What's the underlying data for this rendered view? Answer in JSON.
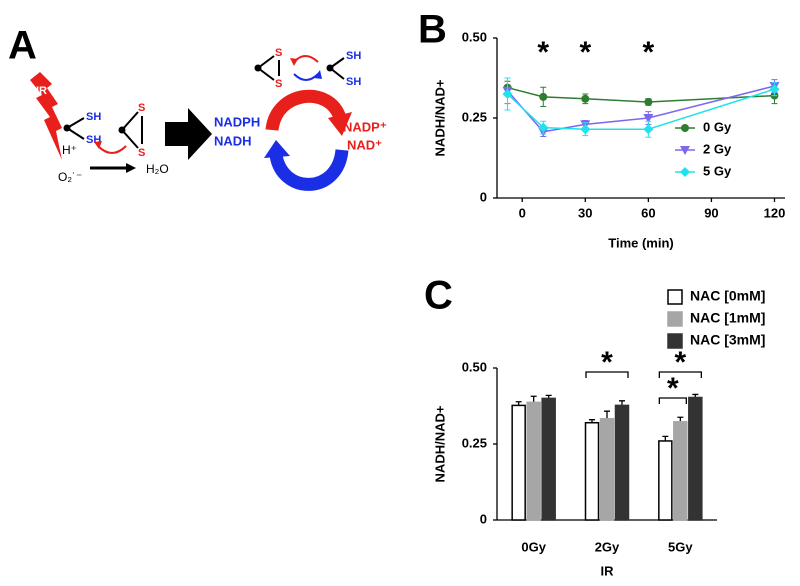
{
  "panel_labels": [
    "A",
    "B",
    "C"
  ],
  "diagram": {
    "ir": "IR",
    "thiol_1": [
      "SH",
      "SH"
    ],
    "disulfide_1": [
      "S",
      "S"
    ],
    "h_plus": "H⁺",
    "superoxide": "O₂˙⁻",
    "water": "H₂O",
    "reduced": [
      "NADPH",
      "NADH"
    ],
    "oxidized": [
      "NADP⁺",
      "NAD⁺"
    ],
    "disulfide_2": [
      "S",
      "S"
    ],
    "thiol_2": [
      "SH",
      "SH"
    ]
  },
  "chart_data": [
    {
      "type": "line",
      "xlabel": "Time (min)",
      "ylabel": "NADH/NAD+",
      "x": [
        -7,
        10,
        30,
        60,
        120
      ],
      "xlim": [
        -12,
        125
      ],
      "xticks": [
        0,
        30,
        60,
        90,
        120
      ],
      "ylim": [
        0,
        0.5
      ],
      "yticks": [
        0,
        0.25,
        {
          "value": 0.5,
          "label": "0.50"
        }
      ],
      "legend": "lower right",
      "series": [
        {
          "name": "0 Gy",
          "color": "#2e7d32",
          "marker": "circle",
          "values": [
            0.345,
            0.316,
            0.31,
            0.3,
            0.32
          ],
          "errors": [
            0.02,
            0.03,
            0.015,
            0.01,
            0.025
          ]
        },
        {
          "name": "2 Gy",
          "color": "#7b68ee",
          "marker": "triangle",
          "values": [
            0.335,
            0.207,
            0.23,
            0.25,
            0.35
          ],
          "errors": [
            0.04,
            0.015,
            0.012,
            0.02,
            0.02
          ]
        },
        {
          "name": "5 Gy",
          "color": "#22e1ee",
          "marker": "diamond",
          "values": [
            0.325,
            0.22,
            0.215,
            0.215,
            0.34
          ],
          "errors": [
            0.05,
            0.02,
            0.02,
            0.025,
            0.02
          ]
        }
      ],
      "annotations": [
        {
          "text": "*",
          "x": 10
        },
        {
          "text": "*",
          "x": 30
        },
        {
          "text": "*",
          "x": 60
        }
      ]
    },
    {
      "type": "bar",
      "xlabel": "IR",
      "ylabel": "NADH/NAD+",
      "categories": [
        "0Gy",
        "2Gy",
        "5Gy"
      ],
      "ylim": [
        0,
        0.5
      ],
      "yticks": [
        0,
        0.25,
        {
          "value": 0.5,
          "label": "0.50"
        }
      ],
      "legend": "upper right",
      "series": [
        {
          "name": "NAC [0mM]",
          "color": "#ffffff",
          "values": [
            0.377,
            0.32,
            0.26
          ],
          "errors": [
            0.012,
            0.01,
            0.015
          ]
        },
        {
          "name": "NAC [1mM]",
          "color": "#a6a6a6",
          "values": [
            0.387,
            0.333,
            0.323
          ],
          "errors": [
            0.02,
            0.025,
            0.015
          ]
        },
        {
          "name": "NAC [3mM]",
          "color": "#333333",
          "values": [
            0.4,
            0.377,
            0.403
          ],
          "errors": [
            0.01,
            0.015,
            0.01
          ]
        }
      ],
      "annotations": [
        "*",
        "*",
        "*"
      ]
    }
  ]
}
